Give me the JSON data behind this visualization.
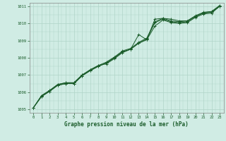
{
  "title": "Graphe pression niveau de la mer (hPa)",
  "bg_color": "#d0ece4",
  "plot_bg_color": "#d0ece4",
  "grid_color": "#b0d4c8",
  "line_color": "#1a5c2a",
  "xlim": [
    -0.5,
    23.5
  ],
  "ylim": [
    1004.8,
    1011.2
  ],
  "yticks": [
    1005,
    1006,
    1007,
    1008,
    1009,
    1010,
    1011
  ],
  "xticks": [
    0,
    1,
    2,
    3,
    4,
    5,
    6,
    7,
    8,
    9,
    10,
    11,
    12,
    13,
    14,
    15,
    16,
    17,
    18,
    19,
    20,
    21,
    22,
    23
  ],
  "series": [
    [
      1005.1,
      1005.75,
      1006.05,
      1006.4,
      1006.5,
      1006.5,
      1006.95,
      1007.25,
      1007.5,
      1007.7,
      1008.0,
      1008.35,
      1008.5,
      1008.85,
      1009.1,
      1010.05,
      1010.25,
      1010.1,
      1010.05,
      1010.1,
      1010.4,
      1010.6,
      1010.65,
      1011.0
    ],
    [
      1005.1,
      1005.75,
      1006.05,
      1006.4,
      1006.5,
      1006.5,
      1006.95,
      1007.25,
      1007.5,
      1007.7,
      1008.0,
      1008.35,
      1008.5,
      1008.85,
      1009.05,
      1009.85,
      1010.2,
      1010.05,
      1010.0,
      1010.05,
      1010.35,
      1010.55,
      1010.6,
      1011.0
    ],
    [
      1005.1,
      1005.8,
      1006.1,
      1006.45,
      1006.55,
      1006.55,
      1007.0,
      1007.3,
      1007.55,
      1007.75,
      1008.05,
      1008.4,
      1008.55,
      1008.9,
      1009.15,
      1010.1,
      1010.3,
      1010.15,
      1010.1,
      1010.15,
      1010.45,
      1010.65,
      1010.7,
      1011.05
    ],
    [
      1005.1,
      1005.8,
      1006.1,
      1006.45,
      1006.55,
      1006.55,
      1007.0,
      1007.3,
      1007.55,
      1007.65,
      1007.95,
      1008.3,
      1008.5,
      1009.35,
      1009.05,
      1010.25,
      1010.3,
      1010.25,
      1010.15,
      1010.15,
      1010.42,
      1010.62,
      1010.68,
      1011.0
    ]
  ]
}
